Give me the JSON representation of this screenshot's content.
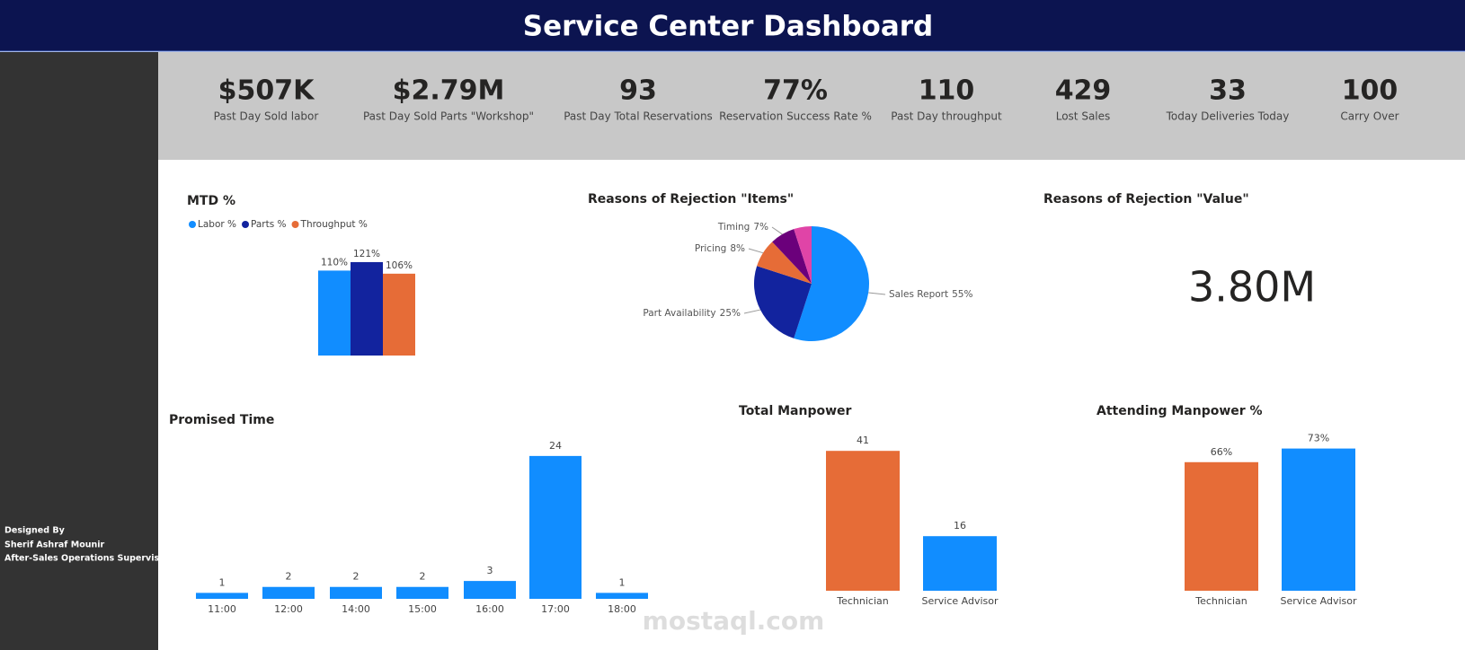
{
  "header": {
    "title": "Service Center Dashboard"
  },
  "kpis": [
    {
      "value": "$507K",
      "label": "Past Day Sold labor"
    },
    {
      "value": "$2.79M",
      "label": "Past Day Sold Parts \"Workshop\""
    },
    {
      "value": "93",
      "label": "Past Day Total Reservations"
    },
    {
      "value": "77%",
      "label": "Reservation Success Rate %"
    },
    {
      "value": "110",
      "label": "Past Day throughput"
    },
    {
      "value": "429",
      "label": "Lost Sales"
    },
    {
      "value": "33",
      "label": "Today Deliveries Today"
    },
    {
      "value": "100",
      "label": "Carry Over"
    }
  ],
  "sidebar": {
    "lines": [
      "Designed By",
      "Sherif Ashraf Mounir",
      "After-Sales Operations Supervisor"
    ]
  },
  "watermark": "mostaql.com",
  "chart_data": [
    {
      "type": "bar",
      "title": "MTD %",
      "series": [
        {
          "name": "Labor %",
          "color": "#118dff",
          "values": [
            110
          ],
          "value_labels": [
            "110%"
          ]
        },
        {
          "name": "Parts %",
          "color": "#12239e",
          "values": [
            121
          ],
          "value_labels": [
            "121%"
          ]
        },
        {
          "name": "Throughput %",
          "color": "#e66c37",
          "values": [
            106
          ],
          "value_labels": [
            "106%"
          ]
        }
      ]
    },
    {
      "type": "pie",
      "title": "Reasons of Rejection \"Items\"",
      "categories": [
        "Sales Report",
        "Part Availability",
        "Pricing",
        "Timing",
        null
      ],
      "values": [
        55,
        25,
        8,
        7,
        5
      ],
      "value_labels": [
        "55%",
        "25%",
        "8%",
        "7%",
        null
      ],
      "colors": [
        "#118dff",
        "#12239e",
        "#e66c37",
        "#6b007b",
        "#e044a7"
      ]
    },
    {
      "type": "card",
      "title": "Reasons of Rejection \"Value\"",
      "value": 3800000,
      "value_label": "3.80M"
    },
    {
      "type": "bar",
      "title": "Promised Time",
      "categories": [
        "11:00",
        "12:00",
        "14:00",
        "15:00",
        "16:00",
        "17:00",
        "18:00"
      ],
      "values": [
        1,
        2,
        2,
        2,
        3,
        24,
        1
      ],
      "color": "#118dff"
    },
    {
      "type": "bar",
      "title": "Total Manpower",
      "categories": [
        "Technician",
        "Service Advisor"
      ],
      "values": [
        41,
        16
      ],
      "colors": [
        "#e66c37",
        "#118dff"
      ]
    },
    {
      "type": "bar",
      "title": "Attending Manpower %",
      "categories": [
        "Technician",
        "Service Advisor"
      ],
      "values": [
        66,
        73
      ],
      "value_labels": [
        "66%",
        "73%"
      ],
      "colors": [
        "#e66c37",
        "#118dff"
      ]
    }
  ]
}
